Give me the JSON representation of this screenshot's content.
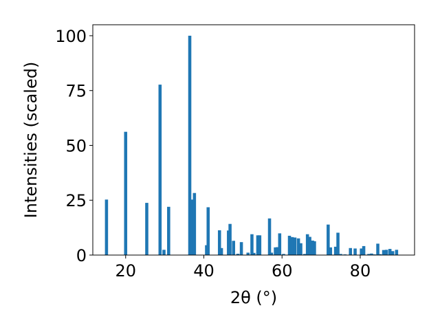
{
  "chart_data": {
    "type": "bar",
    "xlabel": "2θ (°)",
    "ylabel": "Intensities (scaled)",
    "xlim": [
      11.6,
      93.9
    ],
    "ylim": [
      0,
      105
    ],
    "x_ticks": [
      20,
      40,
      60,
      80
    ],
    "y_ticks": [
      0,
      25,
      50,
      75,
      100
    ],
    "grid": false,
    "bar_color": "#1f77b4",
    "bar_width": 0.8,
    "x": [
      15.1,
      20.0,
      25.4,
      28.8,
      29.8,
      31.0,
      36.4,
      37.1,
      37.6,
      40.7,
      41.1,
      44.0,
      44.5,
      46.3,
      46.7,
      47.6,
      48.7,
      49.6,
      51.3,
      52.3,
      52.8,
      53.8,
      54.3,
      56.8,
      57.3,
      58.3,
      58.8,
      59.4,
      60.4,
      61.9,
      62.6,
      63.3,
      64.2,
      64.8,
      65.8,
      66.5,
      67.1,
      67.8,
      68.3,
      71.8,
      72.4,
      73.7,
      74.3,
      75.0,
      76.1,
      77.5,
      78.7,
      80.3,
      80.9,
      82.2,
      82.9,
      83.6,
      84.5,
      85.1,
      86.0,
      86.7,
      87.6,
      88.3,
      89.3
    ],
    "values": [
      25.3,
      56.2,
      23.8,
      77.7,
      2.4,
      22.0,
      100.0,
      25.3,
      28.3,
      4.5,
      21.8,
      11.3,
      3.2,
      11.2,
      14.2,
      6.5,
      0.6,
      5.9,
      1.1,
      9.5,
      1.0,
      9.0,
      9.0,
      16.7,
      1.1,
      3.5,
      3.6,
      9.9,
      0.5,
      8.8,
      8.2,
      8.0,
      7.6,
      5.4,
      0.5,
      9.5,
      8.3,
      6.6,
      6.3,
      13.9,
      3.5,
      3.8,
      10.2,
      0.5,
      0.3,
      3.2,
      3.0,
      3.0,
      4.1,
      0.5,
      0.7,
      0.3,
      5.2,
      0.4,
      2.3,
      2.4,
      2.8,
      1.8,
      2.4
    ]
  }
}
